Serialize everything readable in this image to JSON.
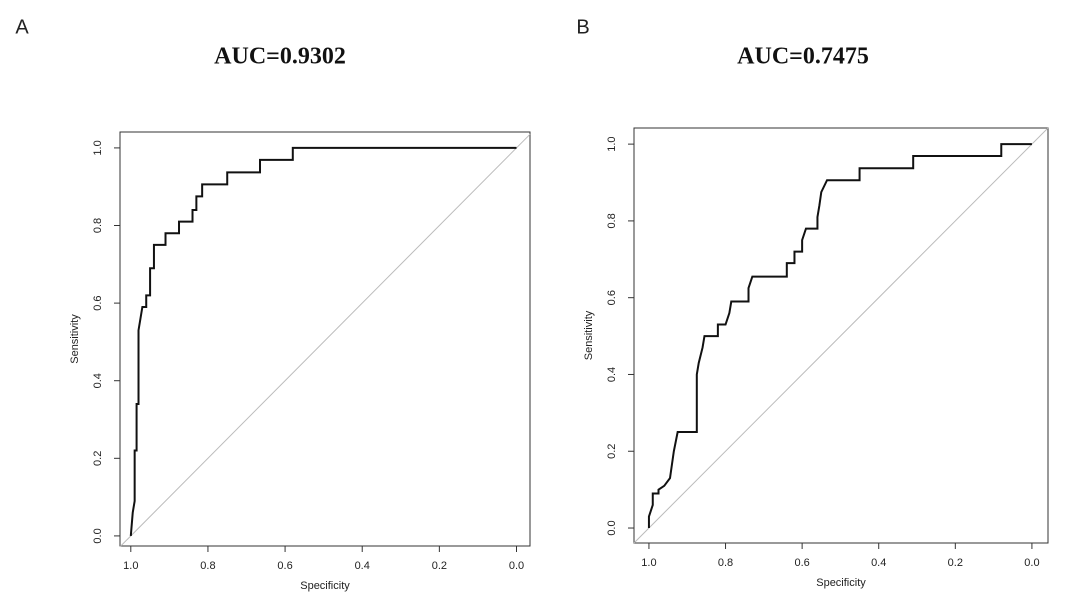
{
  "chart_data": [
    {
      "type": "line",
      "label": "A",
      "title": "AUC=0.9302",
      "xlabel": "Specificity",
      "ylabel": "Sensitivity",
      "xlim": [
        1.028,
        -0.035
      ],
      "ylim": [
        -0.026,
        1.041
      ],
      "xticks": [
        {
          "value": 1,
          "label": "1.0"
        },
        0.8,
        0.6,
        0.4,
        0.2,
        {
          "value": 0,
          "label": "0.0"
        }
      ],
      "yticks": [
        {
          "value": 0,
          "label": "0.0"
        },
        0.2,
        0.4,
        0.6,
        0.8,
        {
          "value": 1,
          "label": "1.0"
        }
      ],
      "reference_line": true,
      "x": [
        1.0,
        0.995,
        0.99,
        0.99,
        0.985,
        0.985,
        0.98,
        0.98,
        0.975,
        0.97,
        0.96,
        0.96,
        0.95,
        0.95,
        0.94,
        0.94,
        0.91,
        0.91,
        0.875,
        0.875,
        0.84,
        0.84,
        0.83,
        0.83,
        0.815,
        0.815,
        0.75,
        0.75,
        0.665,
        0.665,
        0.58,
        0.58,
        0.0
      ],
      "series": [
        {
          "color": "#111111",
          "values": [
            0,
            0.06,
            0.09,
            0.22,
            0.22,
            0.34,
            0.34,
            0.53,
            0.56,
            0.59,
            0.59,
            0.62,
            0.62,
            0.69,
            0.69,
            0.75,
            0.75,
            0.78,
            0.78,
            0.81,
            0.81,
            0.84,
            0.84,
            0.875,
            0.875,
            0.906,
            0.906,
            0.937,
            0.937,
            0.969,
            0.969,
            1.0,
            1.0
          ]
        }
      ]
    },
    {
      "type": "line",
      "label": "B",
      "title": "AUC=0.7475",
      "xlabel": "Specificity",
      "ylabel": "Sensitivity",
      "xlim": [
        1.039,
        -0.042
      ],
      "ylim": [
        -0.039,
        1.042
      ],
      "xticks": [
        {
          "value": 1,
          "label": "1.0"
        },
        0.8,
        0.6,
        0.4,
        0.2,
        {
          "value": 0,
          "label": "0.0"
        }
      ],
      "yticks": [
        {
          "value": 0,
          "label": "0.0"
        },
        0.2,
        0.4,
        0.6,
        0.8,
        {
          "value": 1,
          "label": "1.0"
        }
      ],
      "reference_line": true,
      "x": [
        1.0,
        1.0,
        0.99,
        0.99,
        0.975,
        0.975,
        0.96,
        0.945,
        0.935,
        0.925,
        0.875,
        0.875,
        0.87,
        0.86,
        0.855,
        0.82,
        0.82,
        0.8,
        0.79,
        0.785,
        0.74,
        0.74,
        0.73,
        0.64,
        0.64,
        0.62,
        0.62,
        0.6,
        0.6,
        0.59,
        0.56,
        0.56,
        0.555,
        0.55,
        0.535,
        0.45,
        0.45,
        0.31,
        0.31,
        0.08,
        0.08,
        0.0
      ],
      "series": [
        {
          "color": "#111111",
          "values": [
            0,
            0.03,
            0.06,
            0.09,
            0.09,
            0.1,
            0.11,
            0.13,
            0.2,
            0.25,
            0.25,
            0.4,
            0.43,
            0.47,
            0.5,
            0.5,
            0.53,
            0.53,
            0.56,
            0.59,
            0.59,
            0.625,
            0.655,
            0.655,
            0.69,
            0.69,
            0.72,
            0.72,
            0.75,
            0.78,
            0.78,
            0.81,
            0.84,
            0.875,
            0.906,
            0.906,
            0.937,
            0.937,
            0.969,
            0.969,
            1.0,
            1.0
          ]
        }
      ]
    }
  ]
}
